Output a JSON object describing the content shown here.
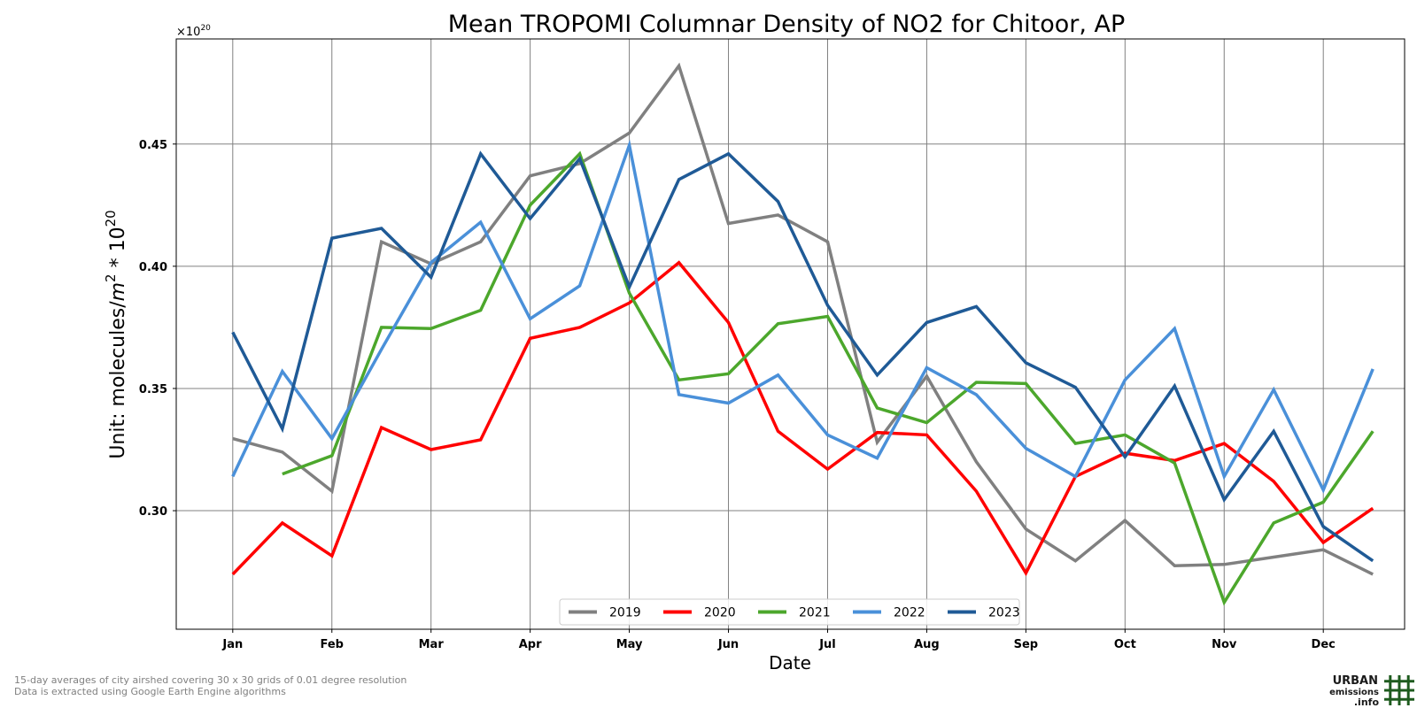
{
  "chart_data": {
    "type": "line",
    "title": "Mean TROPOMI Columnar Density of NO2 for Chitoor, AP",
    "xlabel": "Date",
    "ylabel_prefix": "Unit: molecules/",
    "ylabel_unit": "m",
    "ylabel_power": "2",
    "ylabel_suffix": " * 10",
    "ylabel_exp": "20",
    "offset_prefix": "×10",
    "offset_exp": "20",
    "months": [
      "Jan",
      "Feb",
      "Mar",
      "Apr",
      "May",
      "Jun",
      "Jul",
      "Aug",
      "Sep",
      "Oct",
      "Nov",
      "Dec"
    ],
    "yticks": [
      0.3,
      0.35,
      0.4,
      0.45
    ],
    "ytick_labels": [
      "0.30",
      "0.35",
      "0.40",
      "0.45"
    ],
    "ylim": [
      0.2515,
      0.493
    ],
    "xlim_months": [
      -0.57,
      11.82
    ],
    "grid": true,
    "legend_position": "bottom-center",
    "series": [
      {
        "name": "2019",
        "color": "#808080",
        "start": 0,
        "values": [
          0.3295,
          0.324,
          0.308,
          0.41,
          0.401,
          0.41,
          0.437,
          0.442,
          0.4545,
          0.482,
          0.4175,
          0.421,
          0.41,
          0.328,
          0.355,
          0.32,
          0.2925,
          0.2795,
          0.296,
          0.2775,
          0.278,
          0.281,
          0.284,
          0.274
        ]
      },
      {
        "name": "2020",
        "color": "#ff0000",
        "start": 0,
        "values": [
          0.274,
          0.295,
          0.2815,
          0.334,
          0.325,
          0.329,
          0.3705,
          0.375,
          0.385,
          0.4015,
          0.377,
          0.3325,
          0.317,
          0.332,
          0.331,
          0.308,
          0.2745,
          0.314,
          0.3235,
          0.3205,
          0.3275,
          0.312,
          0.287,
          0.301
        ]
      },
      {
        "name": "2021",
        "color": "#4ca72c",
        "start": 1,
        "values": [
          0.315,
          0.3225,
          0.375,
          0.3745,
          0.382,
          0.425,
          0.446,
          0.389,
          0.3535,
          0.356,
          0.3765,
          0.3795,
          0.342,
          0.336,
          0.3525,
          0.352,
          0.3275,
          0.331,
          0.3195,
          0.2625,
          0.295,
          0.3035,
          0.3325
        ]
      },
      {
        "name": "2022",
        "color": "#4a90d9",
        "start": 0,
        "values": [
          0.314,
          0.357,
          0.3295,
          0.366,
          0.4015,
          0.418,
          0.3785,
          0.392,
          0.4495,
          0.3475,
          0.344,
          0.3555,
          0.331,
          0.3215,
          0.3585,
          0.3475,
          0.3255,
          0.314,
          0.3535,
          0.3745,
          0.314,
          0.3495,
          0.3085,
          0.358
        ]
      },
      {
        "name": "2023",
        "color": "#1f5a96",
        "start": 0,
        "values": [
          0.373,
          0.3335,
          0.4115,
          0.4155,
          0.3955,
          0.446,
          0.4195,
          0.444,
          0.3915,
          0.4355,
          0.446,
          0.4265,
          0.384,
          0.3555,
          0.377,
          0.3835,
          0.3605,
          0.3505,
          0.322,
          0.351,
          0.3045,
          0.3325,
          0.2935,
          0.2795
        ]
      }
    ]
  },
  "footnotes": [
    "15-day averages of city airshed covering 30 x 30 grids of 0.01 degree resolution",
    "Data is extracted using Google Earth Engine algorithms"
  ],
  "logo": {
    "line1": "URBAN",
    "line2": "emissions",
    "line3": ".info",
    "color": "#1e5b1e"
  }
}
